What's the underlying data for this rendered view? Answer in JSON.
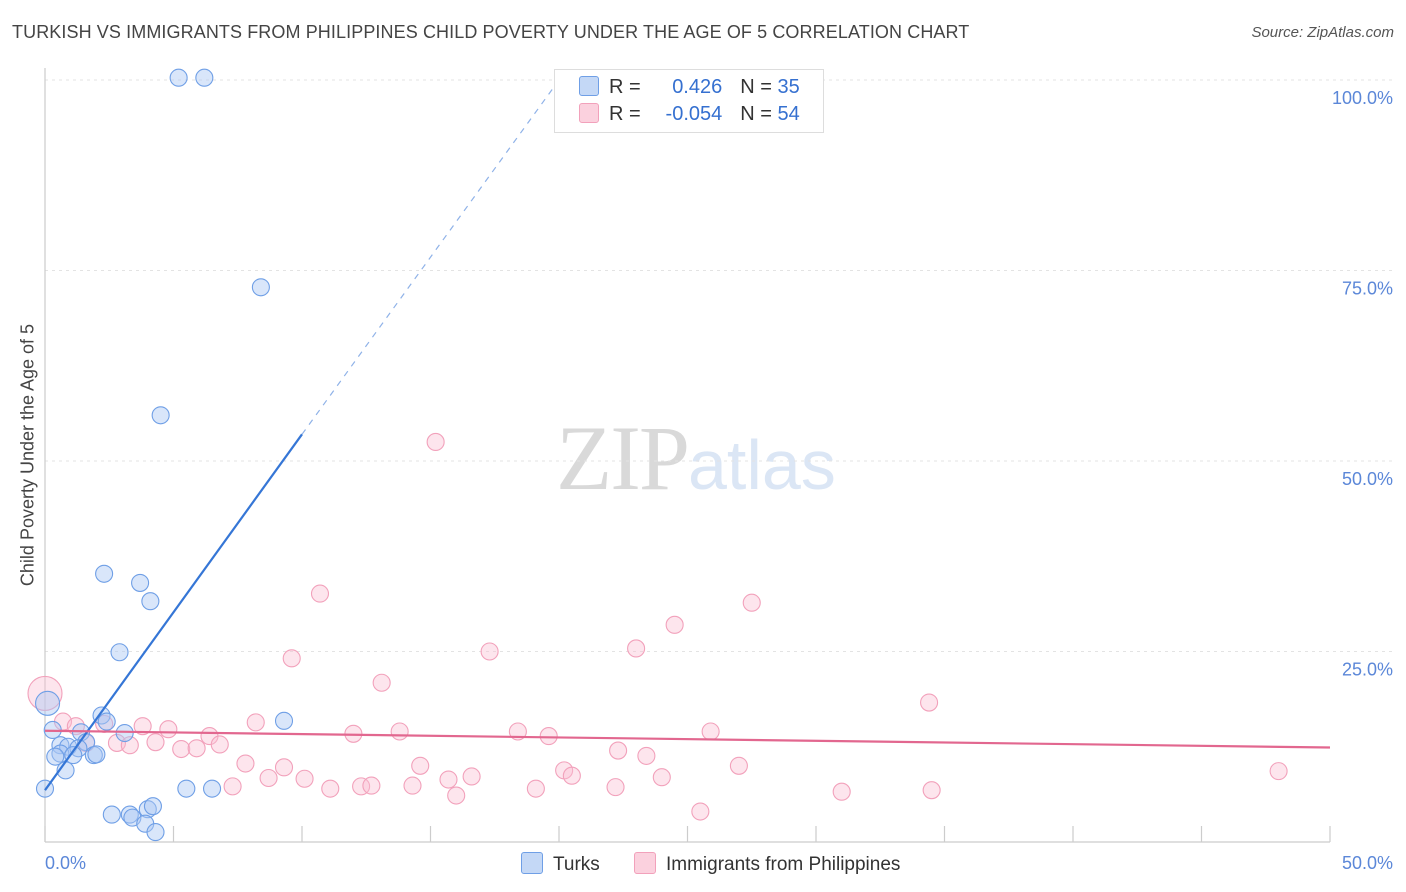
{
  "title": "TURKISH VS IMMIGRANTS FROM PHILIPPINES CHILD POVERTY UNDER THE AGE OF 5 CORRELATION CHART",
  "source": "Source: ZipAtlas.com",
  "watermark": {
    "zip": "ZIP",
    "atlas": "atlas"
  },
  "legend": {
    "r_label": "R =",
    "n_label": "N =",
    "rows": [
      {
        "r": "0.426",
        "n": "35"
      },
      {
        "r": "-0.054",
        "n": "54"
      }
    ]
  },
  "bottom_legend": [
    "Turks",
    "Immigrants from Philippines"
  ],
  "chart_data": {
    "type": "scatter",
    "title": "TURKISH VS IMMIGRANTS FROM PHILIPPINES CHILD POVERTY UNDER THE AGE OF 5 CORRELATION CHART",
    "xlabel": "",
    "ylabel": "Child Poverty Under the Age of 5",
    "xlim": [
      0,
      50
    ],
    "ylim": [
      0,
      100
    ],
    "x_tick_labels": [
      "0.0%",
      "50.0%"
    ],
    "y_ticks": [
      25,
      50,
      75,
      100
    ],
    "y_tick_labels": [
      "25.0%",
      "50.0%",
      "75.0%",
      "100.0%"
    ],
    "grid": true,
    "legend_position": "top-center",
    "colors": {
      "Turks": "#6f9fe6",
      "Immigrants from Philippines": "#f2a1bb"
    },
    "series": [
      {
        "name": "Turks",
        "R": 0.426,
        "N": 35,
        "trend": {
          "x0": 0,
          "y0": 6.8,
          "x1": 10,
          "y1": 53.5,
          "dash_to_x": 20,
          "dash_to_y": 100
        },
        "points": [
          [
            5.2,
            100.3
          ],
          [
            6.2,
            100.3
          ],
          [
            8.4,
            72.8
          ],
          [
            4.5,
            56.0
          ],
          [
            2.3,
            35.2
          ],
          [
            3.7,
            34.0
          ],
          [
            4.1,
            31.6
          ],
          [
            2.9,
            24.9
          ],
          [
            0.1,
            18.2
          ],
          [
            2.2,
            16.6
          ],
          [
            2.4,
            15.8
          ],
          [
            9.3,
            15.9
          ],
          [
            0.3,
            14.7
          ],
          [
            1.4,
            14.4
          ],
          [
            3.1,
            14.3
          ],
          [
            1.6,
            13.1
          ],
          [
            0.6,
            12.7
          ],
          [
            0.9,
            12.5
          ],
          [
            1.3,
            12.3
          ],
          [
            0.6,
            11.6
          ],
          [
            0.4,
            11.2
          ],
          [
            1.1,
            11.4
          ],
          [
            1.9,
            11.4
          ],
          [
            2.0,
            11.5
          ],
          [
            0.8,
            9.4
          ],
          [
            5.5,
            7.0
          ],
          [
            6.5,
            7.0
          ],
          [
            2.6,
            3.6
          ],
          [
            3.3,
            3.6
          ],
          [
            3.4,
            3.2
          ],
          [
            4.0,
            4.3
          ],
          [
            4.2,
            4.7
          ],
          [
            3.9,
            2.4
          ],
          [
            4.3,
            1.3
          ],
          [
            0.0,
            7.0
          ]
        ]
      },
      {
        "name": "Immigrants from Philippines",
        "R": -0.054,
        "N": 54,
        "trend": {
          "x0": 0,
          "y0": 14.6,
          "x1": 50,
          "y1": 12.4
        },
        "points": [
          [
            0.0,
            19.5
          ],
          [
            0.7,
            15.8
          ],
          [
            1.2,
            15.2
          ],
          [
            2.3,
            15.5
          ],
          [
            3.8,
            15.2
          ],
          [
            4.8,
            14.8
          ],
          [
            8.2,
            15.7
          ],
          [
            12.0,
            14.2
          ],
          [
            13.8,
            14.5
          ],
          [
            18.4,
            14.5
          ],
          [
            19.6,
            13.9
          ],
          [
            25.9,
            14.5
          ],
          [
            1.6,
            13.0
          ],
          [
            2.8,
            13.0
          ],
          [
            3.3,
            12.7
          ],
          [
            4.3,
            13.1
          ],
          [
            5.3,
            12.2
          ],
          [
            5.9,
            12.3
          ],
          [
            6.4,
            13.9
          ],
          [
            6.8,
            12.8
          ],
          [
            22.3,
            12.0
          ],
          [
            23.4,
            11.3
          ],
          [
            15.7,
            8.2
          ],
          [
            9.3,
            9.8
          ],
          [
            10.1,
            8.3
          ],
          [
            11.1,
            7.0
          ],
          [
            12.3,
            7.3
          ],
          [
            12.7,
            7.4
          ],
          [
            14.3,
            7.4
          ],
          [
            14.6,
            10.0
          ],
          [
            7.8,
            10.3
          ],
          [
            8.7,
            8.4
          ],
          [
            7.3,
            7.3
          ],
          [
            16.0,
            6.1
          ],
          [
            16.6,
            8.6
          ],
          [
            19.1,
            7.0
          ],
          [
            20.2,
            9.4
          ],
          [
            20.5,
            8.7
          ],
          [
            22.2,
            7.2
          ],
          [
            24.0,
            8.5
          ],
          [
            27.0,
            10.0
          ],
          [
            31.0,
            6.6
          ],
          [
            34.5,
            6.8
          ],
          [
            48.0,
            9.3
          ],
          [
            25.5,
            4.0
          ],
          [
            10.7,
            32.6
          ],
          [
            9.6,
            24.1
          ],
          [
            13.1,
            20.9
          ],
          [
            17.3,
            25.0
          ],
          [
            23.0,
            25.4
          ],
          [
            24.5,
            28.5
          ],
          [
            27.5,
            31.4
          ],
          [
            34.4,
            18.3
          ],
          [
            15.2,
            52.5
          ]
        ]
      }
    ]
  }
}
